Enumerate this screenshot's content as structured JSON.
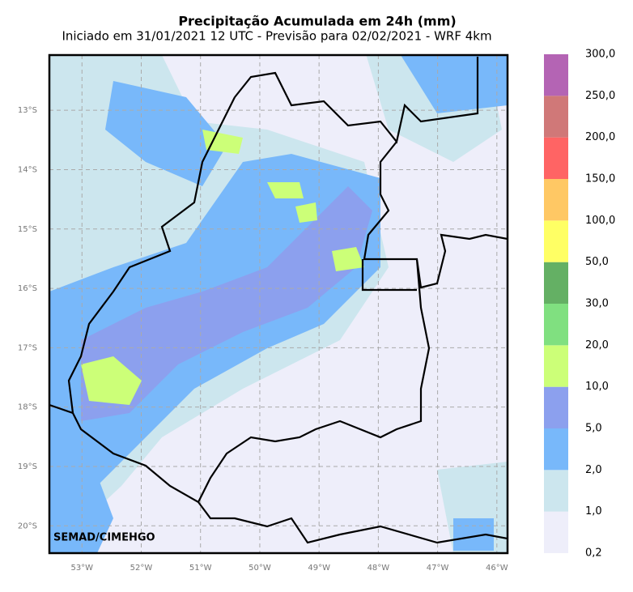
{
  "header": {
    "title": "Precipitação Acumulada em 24h (mm)",
    "subtitle": "Iniciado em 31/01/2021 12 UTC - Previsão para 02/02/2021 - WRF 4km"
  },
  "map": {
    "credit": "SEMAD/CIMEHGO",
    "lon_extent": [
      -53.55,
      -45.82
    ],
    "lat_extent": [
      -12.07,
      -20.46
    ],
    "lat_ticks": [
      {
        "value": -13,
        "label": "13°S"
      },
      {
        "value": -14,
        "label": "14°S"
      },
      {
        "value": -15,
        "label": "15°S"
      },
      {
        "value": -16,
        "label": "16°S"
      },
      {
        "value": -17,
        "label": "17°S"
      },
      {
        "value": -18,
        "label": "18°S"
      },
      {
        "value": -19,
        "label": "19°S"
      },
      {
        "value": -20,
        "label": "20°S"
      }
    ],
    "lon_ticks": [
      {
        "value": -53,
        "label": "53°W"
      },
      {
        "value": -52,
        "label": "52°W"
      },
      {
        "value": -51,
        "label": "51°W"
      },
      {
        "value": -50,
        "label": "50°W"
      },
      {
        "value": -49,
        "label": "49°W"
      },
      {
        "value": -48,
        "label": "48°W"
      },
      {
        "value": -47,
        "label": "47°W"
      },
      {
        "value": -46,
        "label": "46°W"
      }
    ]
  },
  "colorbar": {
    "labels": [
      "0,2",
      "1,0",
      "2,0",
      "5,0",
      "10,0",
      "20,0",
      "30,0",
      "50,0",
      "100,0",
      "150,0",
      "200,0",
      "250,0",
      "300,0"
    ],
    "colors": [
      "#eeeefa",
      "#cce6ee",
      "#78b8fa",
      "#8ca0ee",
      "#ccff78",
      "#80e080",
      "#64b064",
      "#ffff64",
      "#ffc864",
      "#ff6464",
      "#d07878",
      "#b464b4"
    ]
  }
}
